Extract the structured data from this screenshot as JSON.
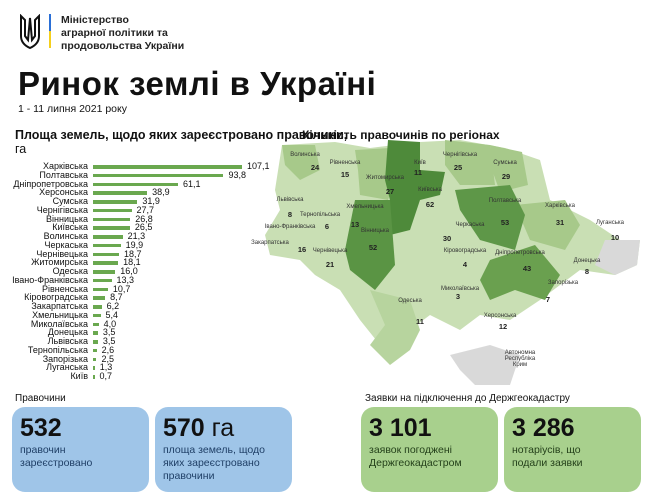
{
  "header": {
    "ministry": [
      "Міністерство",
      "аграрної політики та",
      "продовольства України"
    ],
    "title": "Ринок землі в Україні",
    "period": "1 - 11 липня 2021 року"
  },
  "chart_data": [
    {
      "type": "bar",
      "orientation": "horizontal",
      "title": "Площа земель, щодо яких зареєстровано правочини,",
      "unit": "га",
      "bar_color": "#6aa84f",
      "categories": [
        "Харківська",
        "Полтавська",
        "Дніпропетровська",
        "Херсонська",
        "Сумська",
        "Чернігівська",
        "Вінницька",
        "Київська",
        "Волинська",
        "Черкаська",
        "Чернівецька",
        "Житомирська",
        "Одеська",
        "Івано-Франківська",
        "Рівненська",
        "Кіровоградська",
        "Закарпатська",
        "Хмельницька",
        "Миколаївська",
        "Донецька",
        "Львівська",
        "Тернопільська",
        "Запорізька",
        "Луганська",
        "Київ"
      ],
      "values": [
        107.1,
        93.8,
        61.1,
        38.9,
        31.9,
        27.7,
        26.8,
        26.5,
        21.3,
        19.9,
        18.7,
        18.1,
        16.0,
        13.3,
        10.7,
        8.7,
        6.2,
        5.4,
        4.0,
        3.5,
        3.5,
        2.6,
        2.5,
        1.3,
        0.7
      ],
      "value_labels": [
        "107,1",
        "93,8",
        "61,1",
        "38,9",
        "31,9",
        "27,7",
        "26,8",
        "26,5",
        "21,3",
        "19,9",
        "18,7",
        "18,1",
        "16,0",
        "13,3",
        "10,7",
        "8,7",
        "6,2",
        "5,4",
        "4,0",
        "3,5",
        "3,5",
        "2,6",
        "2,5",
        "1,3",
        "0,7"
      ]
    },
    {
      "type": "heatmap",
      "subtype": "choropleth-map",
      "title": "Кількість правочинів по регіонах",
      "colors": {
        "low": "#dfeccf",
        "high": "#4e8a3a",
        "no_data": "#d9d9d9"
      },
      "regions": [
        {
          "name": "Волинська",
          "value": 24
        },
        {
          "name": "Рівненська",
          "value": 15
        },
        {
          "name": "Київ",
          "value": 11
        },
        {
          "name": "Чернігівська",
          "value": 25
        },
        {
          "name": "Сумська",
          "value": 29
        },
        {
          "name": "Житомирська",
          "value": 27
        },
        {
          "name": "Київська",
          "value": 62
        },
        {
          "name": "Львівська",
          "value": 8
        },
        {
          "name": "Хмельницька",
          "value": 13
        },
        {
          "name": "Тернопільська",
          "value": 6
        },
        {
          "name": "Івано-Франківська",
          "value": null
        },
        {
          "name": "Полтавська",
          "value": 53
        },
        {
          "name": "Харківська",
          "value": 31
        },
        {
          "name": "Луганська",
          "value": 10
        },
        {
          "name": "Вінницька",
          "value": 52
        },
        {
          "name": "Черкаська",
          "value": 30
        },
        {
          "name": "Закарпатська",
          "value": 16
        },
        {
          "name": "Чернівецька",
          "value": 21
        },
        {
          "name": "Кіровоградська",
          "value": 4
        },
        {
          "name": "Дніпропетровська",
          "value": 43
        },
        {
          "name": "Донецька",
          "value": 8
        },
        {
          "name": "Запорізька",
          "value": 7
        },
        {
          "name": "Миколаївська",
          "value": 3
        },
        {
          "name": "Одеська",
          "value": 11
        },
        {
          "name": "Херсонська",
          "value": 12
        },
        {
          "name": "Автономна Республіка Крим",
          "value": null
        }
      ]
    }
  ],
  "stats": {
    "deals_title": "Правочини",
    "deals_count": {
      "number": "532",
      "desc": [
        "правочин",
        "зареєстровано"
      ]
    },
    "deals_area": {
      "number": "570",
      "unit": "га",
      "desc": [
        "площа земель, щодо",
        "яких зареєстровано",
        "правочини"
      ]
    },
    "apps_title": "Заявки на підключення до Держгеокадастру",
    "apps_approved": {
      "number": "3 101",
      "desc": [
        "заявок погоджені",
        "Держгеокадастром"
      ]
    },
    "notaries": {
      "number": "3 286",
      "desc": [
        "нотаріусів, що",
        "подали заявки"
      ]
    }
  }
}
